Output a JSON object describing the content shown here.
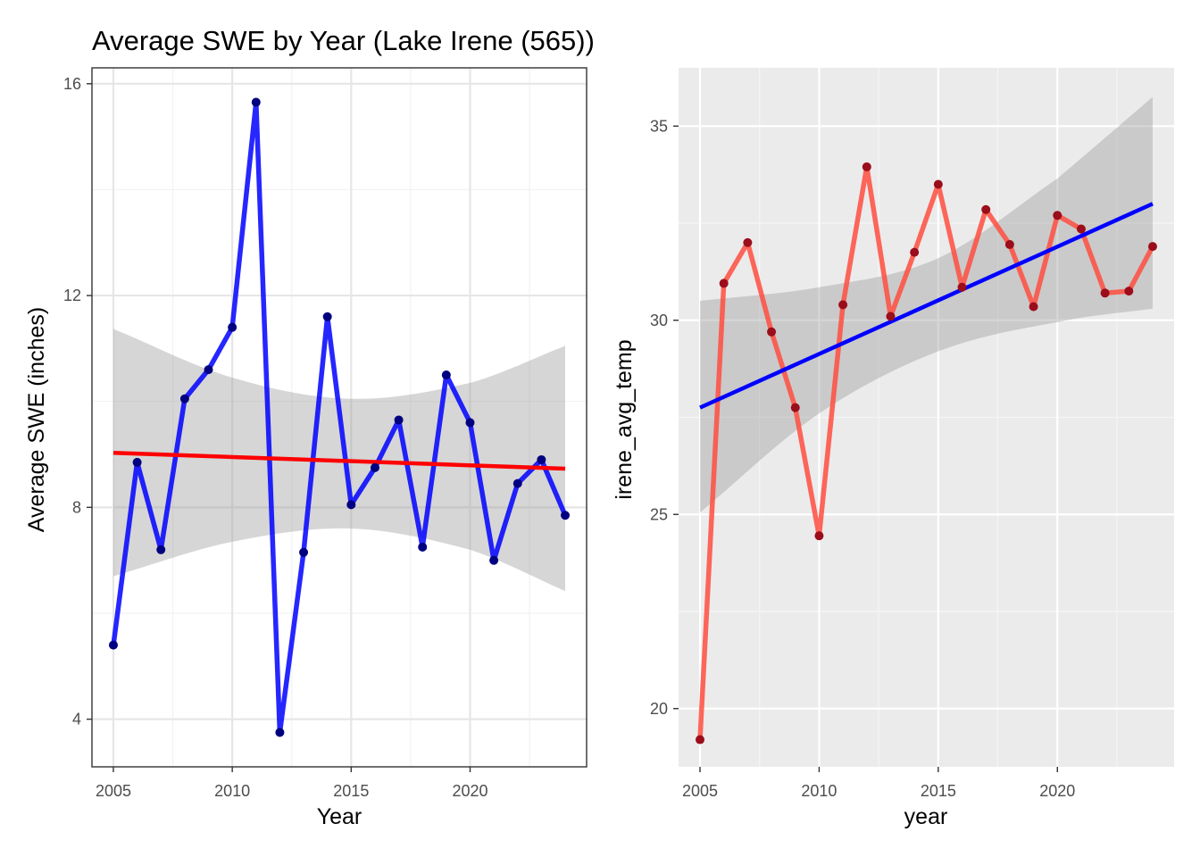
{
  "title": "Average SWE by Year (Lake Irene (565))",
  "chart_data": [
    {
      "type": "line",
      "panel": "left",
      "theme": "bw",
      "xlabel": "Year",
      "ylabel": "Average SWE (inches)",
      "xlim": [
        2004.1,
        2024.9
      ],
      "ylim": [
        3.1,
        16.3
      ],
      "xticks": [
        2005,
        2010,
        2015,
        2020
      ],
      "yticks": [
        4,
        8,
        12,
        16
      ],
      "grid": true,
      "series": [
        {
          "x": [
            2005,
            2006,
            2007,
            2008,
            2009,
            2010,
            2011,
            2012,
            2013,
            2014,
            2015,
            2016,
            2017,
            2018,
            2019,
            2020,
            2021,
            2022,
            2023,
            2024
          ],
          "y": [
            5.4,
            8.85,
            7.2,
            10.05,
            10.6,
            11.4,
            15.65,
            3.75,
            7.15,
            11.6,
            8.05,
            8.75,
            9.65,
            7.25,
            10.5,
            9.6,
            7.0,
            8.45,
            8.9,
            7.85
          ],
          "line_color": "#0000ff",
          "point_color": "#000080"
        }
      ],
      "trend": {
        "y_start": 9.03,
        "y_end": 8.73,
        "color": "#ff0000"
      },
      "ci_band": {
        "x": [
          2005,
          2010,
          2015,
          2020,
          2024
        ],
        "lower": [
          6.7,
          7.35,
          7.6,
          7.2,
          6.42
        ],
        "upper": [
          11.37,
          10.45,
          10.05,
          10.35,
          11.05
        ],
        "color": "#999999"
      }
    },
    {
      "type": "line",
      "panel": "right",
      "theme": "grey",
      "xlabel": "year",
      "ylabel": "irene_avg_temp",
      "xlim": [
        2004.1,
        2024.9
      ],
      "ylim": [
        18.5,
        36.5
      ],
      "xticks": [
        2005,
        2010,
        2015,
        2020
      ],
      "yticks": [
        20,
        25,
        30,
        35
      ],
      "grid": true,
      "series": [
        {
          "x": [
            2005,
            2006,
            2007,
            2008,
            2009,
            2010,
            2011,
            2012,
            2013,
            2014,
            2015,
            2016,
            2017,
            2018,
            2019,
            2020,
            2021,
            2022,
            2023,
            2024
          ],
          "y": [
            19.2,
            30.95,
            32.0,
            29.7,
            27.75,
            24.45,
            30.4,
            33.95,
            30.1,
            31.75,
            33.5,
            30.85,
            32.85,
            31.95,
            30.35,
            32.7,
            32.35,
            30.7,
            30.75,
            31.9
          ],
          "line_color": "#ff4d40",
          "point_color": "#9b0d1a"
        }
      ],
      "trend": {
        "y_start": 27.75,
        "y_end": 33.0,
        "color": "#0000ff"
      },
      "ci_band": {
        "x": [
          2005,
          2010,
          2015,
          2020,
          2024
        ],
        "lower": [
          25.05,
          27.6,
          29.2,
          29.95,
          30.3
        ],
        "upper": [
          30.5,
          30.85,
          31.6,
          33.65,
          35.75
        ],
        "color": "#999999"
      }
    }
  ]
}
